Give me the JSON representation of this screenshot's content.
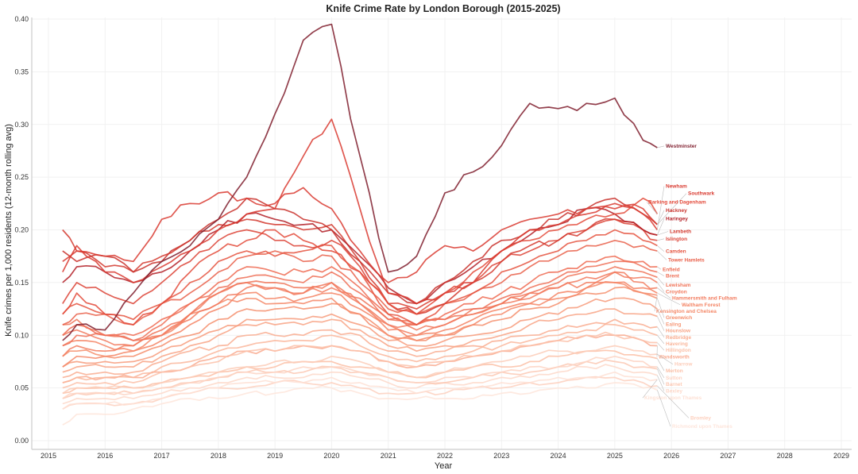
{
  "chart_data": {
    "type": "line",
    "title": "Knife Crime Rate by London Borough (2015-2025)",
    "xlabel": "Year",
    "ylabel": "Knife crimes per 1,000 residents (12-month rolling avg)",
    "xlim": [
      2014.8,
      2029.2
    ],
    "ylim": [
      -0.01,
      0.42
    ],
    "x_ticks": [
      "2015",
      "2016",
      "2017",
      "2018",
      "2019",
      "2020",
      "2021",
      "2022",
      "2023",
      "2024",
      "2025",
      "2026",
      "2027",
      "2028",
      "2029"
    ],
    "y_ticks": [
      "0.00",
      "0.05",
      "0.10",
      "0.15",
      "0.20",
      "0.25",
      "0.30",
      "0.35",
      "0.40"
    ],
    "grid": true,
    "legend": "direct labels at line ends (right)",
    "x": [
      2015.25,
      2015.5,
      2016,
      2016.5,
      2017,
      2017.5,
      2018,
      2018.5,
      2019,
      2019.5,
      2020,
      2020.5,
      2021,
      2021.5,
      2022,
      2022.5,
      2023,
      2023.5,
      2024,
      2024.5,
      2025,
      2025.5,
      2025.75
    ],
    "series": [
      {
        "name": "Westminster",
        "color": "#7f1d2d",
        "values": [
          0.095,
          0.11,
          0.105,
          0.14,
          0.17,
          0.185,
          0.21,
          0.25,
          0.31,
          0.38,
          0.395,
          0.27,
          0.16,
          0.175,
          0.235,
          0.255,
          0.28,
          0.32,
          0.315,
          0.32,
          0.325,
          0.285,
          0.278
        ]
      },
      {
        "name": "Newham",
        "color": "#d93a30",
        "values": [
          0.17,
          0.18,
          0.175,
          0.17,
          0.21,
          0.225,
          0.235,
          0.23,
          0.225,
          0.24,
          0.22,
          0.18,
          0.15,
          0.16,
          0.185,
          0.18,
          0.2,
          0.21,
          0.215,
          0.22,
          0.225,
          0.215,
          0.2
        ]
      },
      {
        "name": "Southwark",
        "color": "#d93a30",
        "values": [
          0.16,
          0.185,
          0.16,
          0.15,
          0.165,
          0.18,
          0.2,
          0.215,
          0.22,
          0.27,
          0.305,
          0.22,
          0.14,
          0.13,
          0.14,
          0.15,
          0.18,
          0.2,
          0.205,
          0.215,
          0.22,
          0.22,
          0.205
        ]
      },
      {
        "name": "Barking and Dagenham",
        "color": "#e34a3a",
        "values": [
          0.12,
          0.14,
          0.12,
          0.11,
          0.13,
          0.16,
          0.18,
          0.19,
          0.2,
          0.19,
          0.18,
          0.16,
          0.13,
          0.12,
          0.14,
          0.16,
          0.18,
          0.19,
          0.2,
          0.21,
          0.215,
          0.23,
          0.215
        ]
      },
      {
        "name": "Hackney",
        "color": "#c9312b",
        "values": [
          0.18,
          0.17,
          0.175,
          0.16,
          0.17,
          0.19,
          0.21,
          0.23,
          0.22,
          0.21,
          0.2,
          0.17,
          0.14,
          0.13,
          0.15,
          0.17,
          0.19,
          0.2,
          0.21,
          0.22,
          0.23,
          0.215,
          0.205
        ]
      },
      {
        "name": "Haringey",
        "color": "#b32027",
        "values": [
          0.15,
          0.165,
          0.16,
          0.15,
          0.16,
          0.18,
          0.2,
          0.215,
          0.21,
          0.205,
          0.2,
          0.175,
          0.145,
          0.13,
          0.15,
          0.165,
          0.18,
          0.195,
          0.205,
          0.22,
          0.215,
          0.2,
          0.195
        ]
      },
      {
        "name": "Lambeth",
        "color": "#d43a2f",
        "values": [
          0.2,
          0.18,
          0.165,
          0.16,
          0.175,
          0.19,
          0.205,
          0.21,
          0.205,
          0.2,
          0.205,
          0.17,
          0.13,
          0.12,
          0.13,
          0.15,
          0.17,
          0.185,
          0.19,
          0.2,
          0.21,
          0.2,
          0.195
        ]
      },
      {
        "name": "Islington",
        "color": "#dc4235",
        "values": [
          0.13,
          0.15,
          0.14,
          0.13,
          0.15,
          0.17,
          0.19,
          0.2,
          0.19,
          0.185,
          0.19,
          0.165,
          0.13,
          0.125,
          0.14,
          0.15,
          0.17,
          0.18,
          0.19,
          0.2,
          0.21,
          0.2,
          0.19
        ]
      },
      {
        "name": "Camden",
        "color": "#e5533f",
        "values": [
          0.12,
          0.13,
          0.12,
          0.115,
          0.13,
          0.15,
          0.17,
          0.18,
          0.175,
          0.18,
          0.185,
          0.16,
          0.12,
          0.11,
          0.13,
          0.14,
          0.16,
          0.17,
          0.18,
          0.19,
          0.2,
          0.19,
          0.185
        ]
      },
      {
        "name": "Tower Hamlets",
        "color": "#e9604a",
        "values": [
          0.11,
          0.12,
          0.12,
          0.11,
          0.13,
          0.14,
          0.16,
          0.175,
          0.18,
          0.17,
          0.175,
          0.15,
          0.125,
          0.12,
          0.13,
          0.14,
          0.15,
          0.165,
          0.175,
          0.185,
          0.19,
          0.185,
          0.18
        ]
      },
      {
        "name": "Enfield",
        "color": "#ee6a51",
        "values": [
          0.1,
          0.11,
          0.1,
          0.1,
          0.115,
          0.13,
          0.15,
          0.165,
          0.16,
          0.16,
          0.165,
          0.145,
          0.12,
          0.11,
          0.12,
          0.13,
          0.14,
          0.15,
          0.16,
          0.17,
          0.175,
          0.17,
          0.165
        ]
      },
      {
        "name": "Brent",
        "color": "#ef6f56",
        "values": [
          0.09,
          0.1,
          0.1,
          0.095,
          0.11,
          0.13,
          0.145,
          0.155,
          0.155,
          0.15,
          0.16,
          0.14,
          0.115,
          0.11,
          0.115,
          0.125,
          0.135,
          0.145,
          0.155,
          0.165,
          0.17,
          0.165,
          0.16
        ]
      },
      {
        "name": "Lewisham",
        "color": "#f07458",
        "values": [
          0.11,
          0.115,
          0.1,
          0.095,
          0.105,
          0.12,
          0.14,
          0.15,
          0.15,
          0.145,
          0.15,
          0.135,
          0.115,
          0.11,
          0.115,
          0.125,
          0.13,
          0.14,
          0.15,
          0.16,
          0.165,
          0.16,
          0.155
        ]
      },
      {
        "name": "Croydon",
        "color": "#f27a5e",
        "values": [
          0.1,
          0.105,
          0.095,
          0.09,
          0.1,
          0.115,
          0.13,
          0.145,
          0.145,
          0.14,
          0.145,
          0.13,
          0.11,
          0.105,
          0.11,
          0.12,
          0.13,
          0.14,
          0.145,
          0.155,
          0.16,
          0.155,
          0.15
        ]
      },
      {
        "name": "Hammersmith and Fulham",
        "color": "#f27c5f",
        "values": [
          0.08,
          0.09,
          0.085,
          0.09,
          0.1,
          0.12,
          0.14,
          0.15,
          0.145,
          0.14,
          0.15,
          0.13,
          0.11,
          0.1,
          0.11,
          0.12,
          0.13,
          0.135,
          0.145,
          0.15,
          0.16,
          0.15,
          0.145
        ]
      },
      {
        "name": "Waltham Forest",
        "color": "#f48363",
        "values": [
          0.09,
          0.095,
          0.09,
          0.085,
          0.095,
          0.11,
          0.125,
          0.14,
          0.135,
          0.135,
          0.14,
          0.125,
          0.105,
          0.1,
          0.105,
          0.115,
          0.125,
          0.13,
          0.14,
          0.145,
          0.15,
          0.145,
          0.14
        ]
      },
      {
        "name": "Kensington and Chelsea",
        "color": "#f48868",
        "values": [
          0.07,
          0.08,
          0.08,
          0.085,
          0.1,
          0.12,
          0.13,
          0.135,
          0.13,
          0.13,
          0.135,
          0.12,
          0.1,
          0.095,
          0.1,
          0.11,
          0.12,
          0.13,
          0.135,
          0.145,
          0.15,
          0.14,
          0.138
        ]
      },
      {
        "name": "Greenwich",
        "color": "#f58e6c",
        "values": [
          0.08,
          0.085,
          0.08,
          0.08,
          0.09,
          0.1,
          0.115,
          0.125,
          0.125,
          0.125,
          0.13,
          0.12,
          0.1,
          0.095,
          0.1,
          0.11,
          0.115,
          0.125,
          0.13,
          0.14,
          0.145,
          0.14,
          0.135
        ]
      },
      {
        "name": "Ealing",
        "color": "#f79b7b",
        "values": [
          0.07,
          0.075,
          0.075,
          0.075,
          0.085,
          0.095,
          0.105,
          0.115,
          0.115,
          0.115,
          0.12,
          0.11,
          0.095,
          0.09,
          0.095,
          0.1,
          0.105,
          0.115,
          0.12,
          0.13,
          0.135,
          0.13,
          0.125
        ]
      },
      {
        "name": "Hounslow",
        "color": "#f8a385",
        "values": [
          0.065,
          0.07,
          0.07,
          0.07,
          0.08,
          0.09,
          0.1,
          0.11,
          0.11,
          0.11,
          0.115,
          0.105,
          0.09,
          0.085,
          0.09,
          0.095,
          0.1,
          0.11,
          0.115,
          0.12,
          0.125,
          0.12,
          0.118
        ]
      },
      {
        "name": "Redbridge",
        "color": "#f9ad91",
        "values": [
          0.06,
          0.065,
          0.065,
          0.065,
          0.075,
          0.085,
          0.09,
          0.1,
          0.1,
          0.1,
          0.105,
          0.1,
          0.085,
          0.08,
          0.085,
          0.09,
          0.095,
          0.1,
          0.105,
          0.11,
          0.115,
          0.11,
          0.108
        ]
      },
      {
        "name": "Havering",
        "color": "#fab69b",
        "values": [
          0.055,
          0.06,
          0.06,
          0.06,
          0.07,
          0.075,
          0.085,
          0.09,
          0.095,
          0.095,
          0.1,
          0.09,
          0.08,
          0.075,
          0.08,
          0.085,
          0.09,
          0.095,
          0.1,
          0.105,
          0.11,
          0.105,
          0.1
        ]
      },
      {
        "name": "Hillingdon",
        "color": "#fbc1a9",
        "values": [
          0.05,
          0.055,
          0.055,
          0.055,
          0.065,
          0.07,
          0.075,
          0.085,
          0.085,
          0.09,
          0.09,
          0.085,
          0.075,
          0.07,
          0.075,
          0.08,
          0.085,
          0.09,
          0.095,
          0.1,
          0.1,
          0.095,
          0.093
        ]
      },
      {
        "name": "Wandsworth",
        "color": "#f9aa8f",
        "values": [
          0.055,
          0.06,
          0.06,
          0.06,
          0.065,
          0.07,
          0.08,
          0.085,
          0.085,
          0.09,
          0.09,
          0.085,
          0.075,
          0.07,
          0.075,
          0.08,
          0.085,
          0.09,
          0.095,
          0.1,
          0.1,
          0.095,
          0.09
        ]
      },
      {
        "name": "Harrow",
        "color": "#fcccb9",
        "values": [
          0.045,
          0.05,
          0.05,
          0.05,
          0.055,
          0.06,
          0.065,
          0.07,
          0.075,
          0.075,
          0.08,
          0.075,
          0.065,
          0.06,
          0.065,
          0.07,
          0.075,
          0.08,
          0.085,
          0.085,
          0.09,
          0.085,
          0.082
        ]
      },
      {
        "name": "Merton",
        "color": "#fbbfa6",
        "values": [
          0.045,
          0.05,
          0.05,
          0.05,
          0.055,
          0.06,
          0.065,
          0.07,
          0.07,
          0.075,
          0.075,
          0.07,
          0.065,
          0.06,
          0.065,
          0.07,
          0.07,
          0.075,
          0.08,
          0.085,
          0.085,
          0.08,
          0.078
        ]
      },
      {
        "name": "Sutton",
        "color": "#fdd3c3",
        "values": [
          0.04,
          0.045,
          0.045,
          0.045,
          0.05,
          0.055,
          0.06,
          0.065,
          0.065,
          0.07,
          0.07,
          0.065,
          0.06,
          0.055,
          0.06,
          0.06,
          0.065,
          0.07,
          0.07,
          0.075,
          0.08,
          0.075,
          0.07
        ]
      },
      {
        "name": "Barnet",
        "color": "#fcc8b3",
        "values": [
          0.04,
          0.045,
          0.045,
          0.045,
          0.05,
          0.055,
          0.06,
          0.065,
          0.065,
          0.065,
          0.07,
          0.065,
          0.06,
          0.055,
          0.055,
          0.06,
          0.065,
          0.065,
          0.07,
          0.075,
          0.075,
          0.07,
          0.068
        ]
      },
      {
        "name": "Bexley",
        "color": "#fdd8c9",
        "values": [
          0.035,
          0.04,
          0.04,
          0.04,
          0.045,
          0.05,
          0.055,
          0.06,
          0.06,
          0.06,
          0.065,
          0.06,
          0.055,
          0.05,
          0.055,
          0.055,
          0.06,
          0.06,
          0.065,
          0.07,
          0.07,
          0.065,
          0.062
        ]
      },
      {
        "name": "Kingston upon Thames",
        "color": "#fee1d5",
        "values": [
          0.03,
          0.035,
          0.035,
          0.035,
          0.04,
          0.045,
          0.05,
          0.055,
          0.055,
          0.055,
          0.06,
          0.055,
          0.05,
          0.045,
          0.05,
          0.05,
          0.055,
          0.055,
          0.06,
          0.06,
          0.065,
          0.06,
          0.058
        ]
      },
      {
        "name": "Bromley",
        "color": "#fdd0be",
        "values": [
          0.03,
          0.035,
          0.035,
          0.035,
          0.04,
          0.045,
          0.05,
          0.05,
          0.055,
          0.055,
          0.055,
          0.05,
          0.045,
          0.045,
          0.045,
          0.05,
          0.05,
          0.055,
          0.055,
          0.06,
          0.06,
          0.055,
          0.052
        ]
      },
      {
        "name": "Richmond upon Thames",
        "color": "#fee5db",
        "values": [
          0.015,
          0.025,
          0.025,
          0.03,
          0.035,
          0.04,
          0.04,
          0.045,
          0.045,
          0.05,
          0.05,
          0.045,
          0.04,
          0.04,
          0.04,
          0.04,
          0.045,
          0.045,
          0.05,
          0.05,
          0.055,
          0.05,
          0.048
        ]
      }
    ],
    "labels": [
      {
        "name": "Westminster",
        "value": 0.278
      },
      {
        "name": "Newham",
        "value": 0.24
      },
      {
        "name": "Southwark",
        "value": 0.233
      },
      {
        "name": "Barking and Dagenham",
        "value": 0.225
      },
      {
        "name": "Hackney",
        "value": 0.217
      },
      {
        "name": "Haringey",
        "value": 0.209
      },
      {
        "name": "Lambeth",
        "value": 0.197
      },
      {
        "name": "Islington",
        "value": 0.19
      },
      {
        "name": "Camden",
        "value": 0.178
      },
      {
        "name": "Tower Hamlets",
        "value": 0.17
      },
      {
        "name": "Enfield",
        "value": 0.161
      },
      {
        "name": "Brent",
        "value": 0.155
      },
      {
        "name": "Lewisham",
        "value": 0.146
      },
      {
        "name": "Croydon",
        "value": 0.142
      },
      {
        "name": "Hammersmith and Fulham",
        "value": 0.139
      },
      {
        "name": "Waltham Forest",
        "value": 0.132
      },
      {
        "name": "Kensington and Chelsea",
        "value": 0.131
      },
      {
        "name": "Greenwich",
        "value": 0.124
      },
      {
        "name": "Ealing",
        "value": 0.117
      },
      {
        "name": "Hounslow",
        "value": 0.111
      },
      {
        "name": "Redbridge",
        "value": 0.103
      },
      {
        "name": "Havering",
        "value": 0.096
      },
      {
        "name": "Hillingdon",
        "value": 0.087
      },
      {
        "name": "Wandsworth",
        "value": 0.082
      },
      {
        "name": "Harrow",
        "value": 0.071
      },
      {
        "name": "Merton",
        "value": 0.067
      },
      {
        "name": "Sutton",
        "value": 0.058
      },
      {
        "name": "Barnet",
        "value": 0.054
      },
      {
        "name": "Bexley",
        "value": 0.046
      },
      {
        "name": "Kingston upon Thames",
        "value": 0.039
      },
      {
        "name": "Bromley",
        "value": 0.02
      },
      {
        "name": "Richmond upon Thames",
        "value": 0.012
      }
    ]
  }
}
